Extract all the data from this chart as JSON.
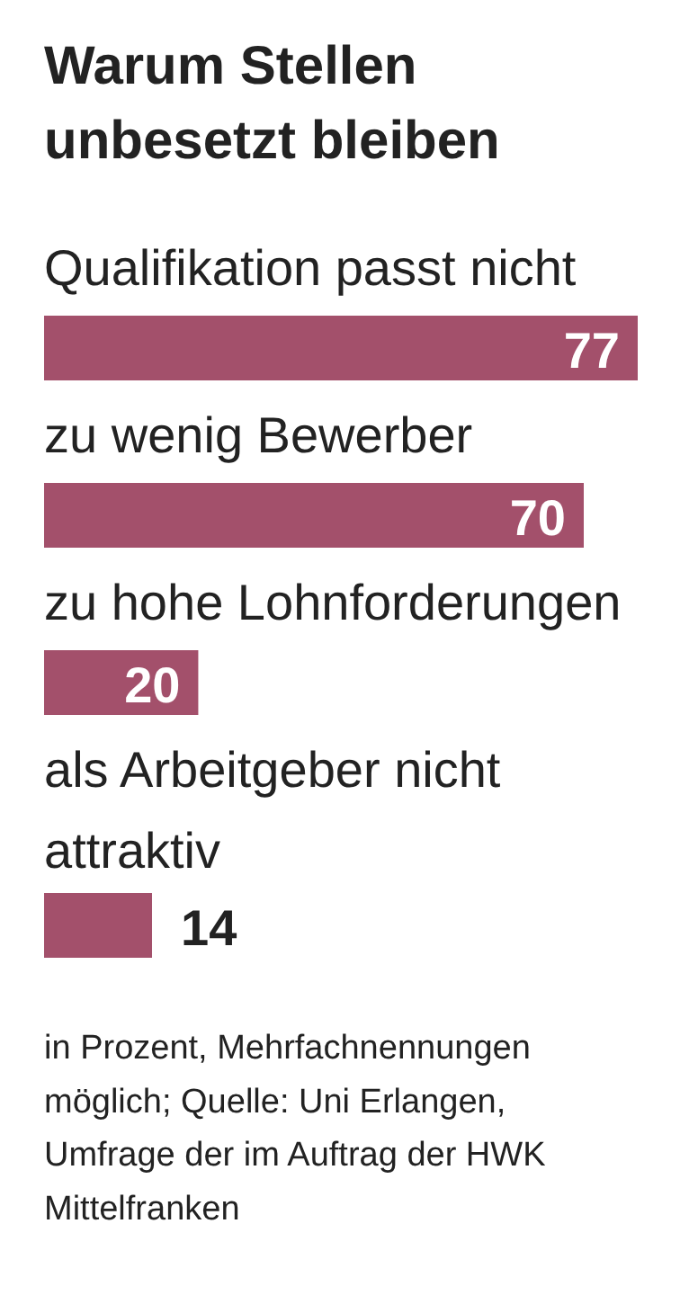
{
  "chart_data": {
    "type": "bar",
    "orientation": "horizontal",
    "title": "Warum Stellen unbesetzt bleiben",
    "categories": [
      "Qualifikation passt nicht",
      "zu wenig Bewerber",
      "zu hohe Lohnforderungen",
      "als Arbeitgeber nicht attraktiv"
    ],
    "values": [
      77,
      70,
      20,
      14
    ],
    "color": "#a3506b",
    "data_labels": true,
    "annotations": [
      "in Prozent, Mehrfachnennungen möglich; Quelle: Uni Erlangen, Umfrage der im Auftrag der HWK Mittelfranken"
    ]
  }
}
